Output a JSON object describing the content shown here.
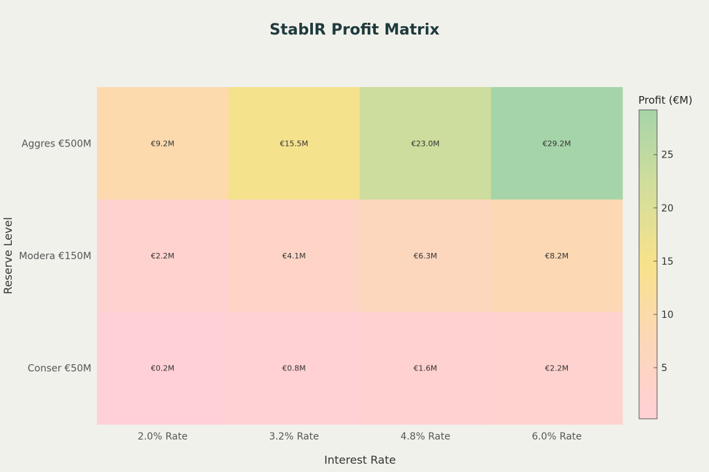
{
  "chart_data": {
    "type": "heatmap",
    "title": "StablR Profit Matrix",
    "xlabel": "Interest Rate",
    "ylabel": "Reserve Level",
    "x_categories": [
      "2.0% Rate",
      "3.2% Rate",
      "4.8% Rate",
      "6.0% Rate"
    ],
    "y_categories": [
      "Aggres €500M",
      "Modera €150M",
      "Conser €50M"
    ],
    "values": [
      [
        9.2,
        15.5,
        23.0,
        29.2
      ],
      [
        2.2,
        4.1,
        6.3,
        8.2
      ],
      [
        0.2,
        0.8,
        1.6,
        2.2
      ]
    ],
    "cell_labels": [
      [
        "€9.2M",
        "€15.5M",
        "€23.0M",
        "€29.2M"
      ],
      [
        "€2.2M",
        "€4.1M",
        "€6.3M",
        "€8.2M"
      ],
      [
        "€0.2M",
        "€0.8M",
        "€1.6M",
        "€2.2M"
      ]
    ],
    "colorbar": {
      "title": "Profit (€M)",
      "range": [
        0.2,
        29.2
      ],
      "ticks": [
        5,
        10,
        15,
        20,
        25
      ],
      "tick_labels": [
        "5",
        "10",
        "15",
        "20",
        "25"
      ],
      "colorscale": [
        [
          0.0,
          "#ffd0d6"
        ],
        [
          0.25,
          "#fdd7b9"
        ],
        [
          0.5,
          "#f8e28b"
        ],
        [
          0.75,
          "#d2de9b"
        ],
        [
          1.0,
          "#a6d4a9"
        ]
      ]
    },
    "grid": false
  }
}
